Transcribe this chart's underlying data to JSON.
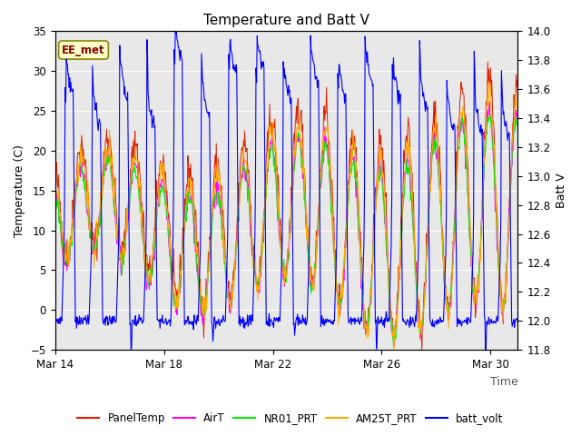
{
  "title": "Temperature and Batt V",
  "xlabel": "Time",
  "ylabel_left": "Temperature (C)",
  "ylabel_right": "Batt V",
  "ylim_left": [
    -5,
    35
  ],
  "ylim_right": [
    11.8,
    14.0
  ],
  "yticks_left": [
    -5,
    0,
    5,
    10,
    15,
    20,
    25,
    30,
    35
  ],
  "yticks_right": [
    11.8,
    12.0,
    12.2,
    12.4,
    12.6,
    12.8,
    13.0,
    13.2,
    13.4,
    13.6,
    13.8,
    14.0
  ],
  "xtick_labels": [
    "Mar 14",
    "Mar 18",
    "Mar 22",
    "Mar 26",
    "Mar 30"
  ],
  "annotation": "EE_met",
  "legend_entries": [
    "PanelTemp",
    "AirT",
    "NR01_PRT",
    "AM25T_PRT",
    "batt_volt"
  ],
  "legend_colors": [
    "#dd2200",
    "#ff00ff",
    "#00ee00",
    "#ffaa00",
    "#0000ff"
  ],
  "line_colors": {
    "PanelTemp": "#dd2200",
    "AirT": "#ff00ff",
    "NR01_PRT": "#00ee00",
    "AM25T_PRT": "#ffaa00",
    "batt_volt": "#0000ff"
  },
  "background_color": "#e8e8e8",
  "seed": 42
}
